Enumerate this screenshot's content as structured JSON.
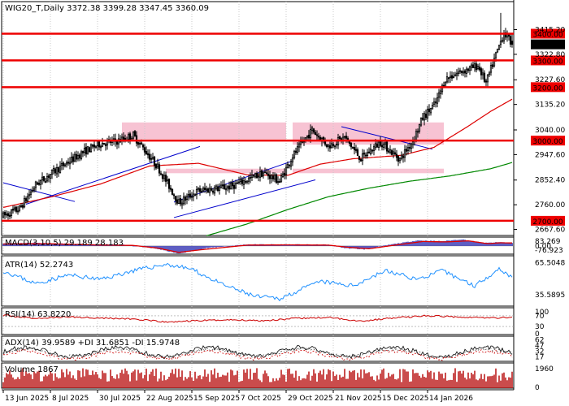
{
  "chart_data": {
    "type": "candlestick",
    "colors": {
      "up": "#000000",
      "down": "#000000",
      "level_line": "#ee0000",
      "zone_fill": "#f6b9cb",
      "ma_fast": "#dd0000",
      "ma_slow": "#008800",
      "trend_line": "#0000cc",
      "macd_hist": "#1a1aaa",
      "macd_signal": "#dd0000",
      "atr_line": "#1e90ff",
      "rsi_line": "#cc0000"
    },
    "main": {
      "header": "WIG20_T,Daily  3372.38 3399.28 3347.45 3360.09",
      "ylim": [
        2645,
        3520
      ],
      "y_ticks": [
        "3415.20",
        "3322.80",
        "3227.60",
        "3135.20",
        "3040.00",
        "2947.60",
        "2852.40",
        "2760.00",
        "2667.60"
      ],
      "levels": [
        {
          "value": 3400.0,
          "label": "3400.00"
        },
        {
          "value": 3300.0,
          "label": "3300.00"
        },
        {
          "value": 3200.0,
          "label": "3200.00"
        },
        {
          "value": 3000.0,
          "label": "3000.00"
        },
        {
          "value": 2700.0,
          "label": "2700.00"
        }
      ],
      "current_price": {
        "value": 3360.09,
        "label": "3360.09"
      },
      "zones": [
        {
          "i0": 73,
          "i1": 174,
          "hi": 3068,
          "lo": 3005
        },
        {
          "i0": 100,
          "i1": 174,
          "hi": 2895,
          "lo": 2878
        },
        {
          "i0": 178,
          "i1": 271,
          "hi": 3068,
          "lo": 2985
        },
        {
          "i0": 178,
          "i1": 271,
          "hi": 2895,
          "lo": 2878
        }
      ],
      "trendlines": [
        {
          "i0": 0,
          "v0": 2842,
          "i1": 44,
          "v1": 2772
        },
        {
          "i0": 14,
          "v0": 2762,
          "i1": 121,
          "v1": 2978
        },
        {
          "i0": 105,
          "v0": 2770,
          "i1": 178,
          "v1": 2924
        },
        {
          "i0": 105,
          "v0": 2712,
          "i1": 192,
          "v1": 2853
        },
        {
          "i0": 208,
          "v0": 3052,
          "i1": 264,
          "v1": 2968
        }
      ],
      "ma_fast": {
        "i0": 0,
        "i1": 313,
        "points": [
          [
            0,
            2750
          ],
          [
            30,
            2790
          ],
          [
            60,
            2838
          ],
          [
            90,
            2905
          ],
          [
            120,
            2915
          ],
          [
            150,
            2872
          ],
          [
            175,
            2870
          ],
          [
            195,
            2912
          ],
          [
            215,
            2932
          ],
          [
            245,
            2945
          ],
          [
            265,
            2975
          ],
          [
            285,
            3050
          ],
          [
            300,
            3110
          ],
          [
            313,
            3155
          ]
        ]
      },
      "ma_slow": {
        "i0": 125,
        "i1": 313,
        "points": [
          [
            125,
            2644
          ],
          [
            150,
            2688
          ],
          [
            175,
            2742
          ],
          [
            200,
            2790
          ],
          [
            225,
            2822
          ],
          [
            250,
            2848
          ],
          [
            275,
            2868
          ],
          [
            300,
            2895
          ],
          [
            313,
            2918
          ]
        ]
      },
      "candles": {
        "count": 314,
        "seed": 7,
        "first_close": 2718,
        "last": {
          "open": 3372.38,
          "high": 3399.28,
          "low": 3347.45,
          "close": 3360.09
        },
        "anchors": [
          [
            0,
            2718
          ],
          [
            10,
            2745
          ],
          [
            20,
            2835
          ],
          [
            35,
            2900
          ],
          [
            50,
            2960
          ],
          [
            60,
            2990
          ],
          [
            70,
            2998
          ],
          [
            80,
            3020
          ],
          [
            95,
            2902
          ],
          [
            108,
            2768
          ],
          [
            120,
            2812
          ],
          [
            140,
            2828
          ],
          [
            160,
            2880
          ],
          [
            170,
            2848
          ],
          [
            178,
            2942
          ],
          [
            190,
            3040
          ],
          [
            200,
            2980
          ],
          [
            210,
            3012
          ],
          [
            220,
            2932
          ],
          [
            232,
            2995
          ],
          [
            244,
            2930
          ],
          [
            252,
            3000
          ],
          [
            258,
            3085
          ],
          [
            266,
            3140
          ],
          [
            272,
            3230
          ],
          [
            280,
            3255
          ],
          [
            292,
            3280
          ],
          [
            297,
            3215
          ],
          [
            303,
            3320
          ],
          [
            308,
            3405
          ],
          [
            313,
            3360
          ]
        ]
      }
    },
    "macd": {
      "label": "MACD(3,10,5) 29.189 28.183",
      "ticks": [
        "83.269",
        "0.00",
        "-76.923"
      ],
      "range": [
        -76.923,
        83.269
      ],
      "hist_anchors": [
        [
          0,
          25
        ],
        [
          20,
          30
        ],
        [
          45,
          18
        ],
        [
          75,
          12
        ],
        [
          95,
          -28
        ],
        [
          108,
          -72
        ],
        [
          125,
          -20
        ],
        [
          150,
          15
        ],
        [
          175,
          15
        ],
        [
          200,
          12
        ],
        [
          210,
          -20
        ],
        [
          222,
          -32
        ],
        [
          240,
          18
        ],
        [
          255,
          52
        ],
        [
          270,
          45
        ],
        [
          282,
          62
        ],
        [
          296,
          28
        ],
        [
          306,
          36
        ],
        [
          313,
          29
        ]
      ],
      "signal_anchors": [
        [
          0,
          18
        ],
        [
          25,
          22
        ],
        [
          55,
          10
        ],
        [
          80,
          5
        ],
        [
          95,
          -20
        ],
        [
          108,
          -60
        ],
        [
          122,
          -35
        ],
        [
          150,
          8
        ],
        [
          175,
          10
        ],
        [
          200,
          8
        ],
        [
          212,
          -12
        ],
        [
          225,
          -26
        ],
        [
          242,
          10
        ],
        [
          258,
          42
        ],
        [
          272,
          38
        ],
        [
          286,
          48
        ],
        [
          298,
          22
        ],
        [
          306,
          30
        ],
        [
          313,
          28
        ]
      ]
    },
    "atr": {
      "label": "ATR(14) 52.2743",
      "ticks": [
        "65.5048",
        "35.5895"
      ],
      "range": [
        25,
        72
      ],
      "anchors": [
        [
          0,
          58
        ],
        [
          20,
          46
        ],
        [
          40,
          54
        ],
        [
          60,
          50
        ],
        [
          80,
          58
        ],
        [
          100,
          64
        ],
        [
          115,
          60
        ],
        [
          135,
          45
        ],
        [
          155,
          34
        ],
        [
          170,
          32
        ],
        [
          195,
          48
        ],
        [
          215,
          44
        ],
        [
          235,
          58
        ],
        [
          255,
          50
        ],
        [
          270,
          58
        ],
        [
          290,
          44
        ],
        [
          305,
          60
        ],
        [
          313,
          52
        ]
      ]
    },
    "rsi": {
      "label": "RSI(14) 63.8220",
      "ticks": [
        "100",
        "70",
        "30",
        "0"
      ],
      "range": [
        0,
        100
      ],
      "anchors": [
        [
          0,
          72
        ],
        [
          20,
          60
        ],
        [
          40,
          66
        ],
        [
          60,
          62
        ],
        [
          80,
          58
        ],
        [
          100,
          46
        ],
        [
          120,
          52
        ],
        [
          140,
          55
        ],
        [
          160,
          52
        ],
        [
          180,
          60
        ],
        [
          200,
          64
        ],
        [
          220,
          50
        ],
        [
          240,
          62
        ],
        [
          260,
          70
        ],
        [
          280,
          66
        ],
        [
          300,
          62
        ],
        [
          313,
          64
        ]
      ]
    },
    "adx": {
      "label": "ADX(14) 39.9589 +DI 31.6851 -DI 15.9748",
      "ticks": [
        "62",
        "47",
        "32",
        "17"
      ],
      "range": [
        5,
        72
      ]
    },
    "volume": {
      "label": "Volume 1867",
      "ticks": [
        "1960",
        "0"
      ]
    },
    "x_ticks": [
      {
        "i": 0,
        "label": "13 Jun 2025"
      },
      {
        "i": 29,
        "label": "8 Jul 2025"
      },
      {
        "i": 58,
        "label": "30 Jul 2025"
      },
      {
        "i": 87,
        "label": "22 Aug 2025"
      },
      {
        "i": 116,
        "label": "15 Sep 2025"
      },
      {
        "i": 145,
        "label": "7 Oct 2025"
      },
      {
        "i": 174,
        "label": "29 Oct 2025"
      },
      {
        "i": 203,
        "label": "21 Nov 2025"
      },
      {
        "i": 232,
        "label": "15 Dec 2025"
      },
      {
        "i": 261,
        "label": "14 Jan 2026"
      }
    ]
  }
}
